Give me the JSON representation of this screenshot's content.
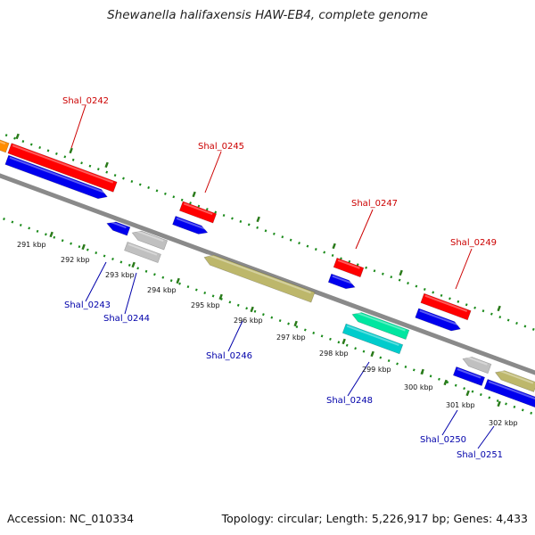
{
  "header": {
    "title": "Shewanella halifaxensis HAW-EB4, complete genome"
  },
  "footer": {
    "accession": "Accession: NC_010334",
    "topology": "Topology: circular; Length: 5,226,917 bp; Genes: 4,433"
  },
  "colors": {
    "backbone": "#8a8a8a",
    "tick_dots": "#1a8a1a",
    "tick_marks": "#2a7a1a",
    "label_forward": "#cc0000",
    "label_reverse": "#0000aa"
  },
  "scale": {
    "unit": "kbp",
    "ticks": [
      {
        "label": "291 kbp"
      },
      {
        "label": "292 kbp"
      },
      {
        "label": "293 kbp"
      },
      {
        "label": "294 kbp"
      },
      {
        "label": "295 kbp"
      },
      {
        "label": "296 kbp"
      },
      {
        "label": "297 kbp"
      },
      {
        "label": "298 kbp"
      },
      {
        "label": "299 kbp"
      },
      {
        "label": "300 kbp"
      },
      {
        "label": "301 kbp"
      },
      {
        "label": "302 kbp"
      }
    ]
  },
  "features": [
    {
      "color": "#ff8c00"
    },
    {
      "color": "#ff0000"
    },
    {
      "color": "#0000ee"
    },
    {
      "color": "#0000ee"
    },
    {
      "color": "#c0c0c0"
    },
    {
      "color": "#c0c0c0"
    },
    {
      "color": "#ff0000"
    },
    {
      "color": "#0000ee"
    },
    {
      "color": "#bdb76b"
    },
    {
      "color": "#ff0000"
    },
    {
      "color": "#0000ee"
    },
    {
      "color": "#00e6a0"
    },
    {
      "color": "#00cccc"
    },
    {
      "color": "#ff0000"
    },
    {
      "color": "#0000ee"
    },
    {
      "color": "#c0c0c0"
    },
    {
      "color": "#0000ee"
    },
    {
      "color": "#bdb76b"
    },
    {
      "color": "#0000ee"
    }
  ],
  "labels": [
    {
      "text": "Shal_0242",
      "strand": "forward"
    },
    {
      "text": "Shal_0243",
      "strand": "reverse"
    },
    {
      "text": "Shal_0244",
      "strand": "reverse"
    },
    {
      "text": "Shal_0245",
      "strand": "forward"
    },
    {
      "text": "Shal_0246",
      "strand": "reverse"
    },
    {
      "text": "Shal_0247",
      "strand": "forward"
    },
    {
      "text": "Shal_0248",
      "strand": "reverse"
    },
    {
      "text": "Shal_0249",
      "strand": "forward"
    },
    {
      "text": "Shal_0250",
      "strand": "reverse"
    },
    {
      "text": "Shal_0251",
      "strand": "reverse"
    }
  ]
}
